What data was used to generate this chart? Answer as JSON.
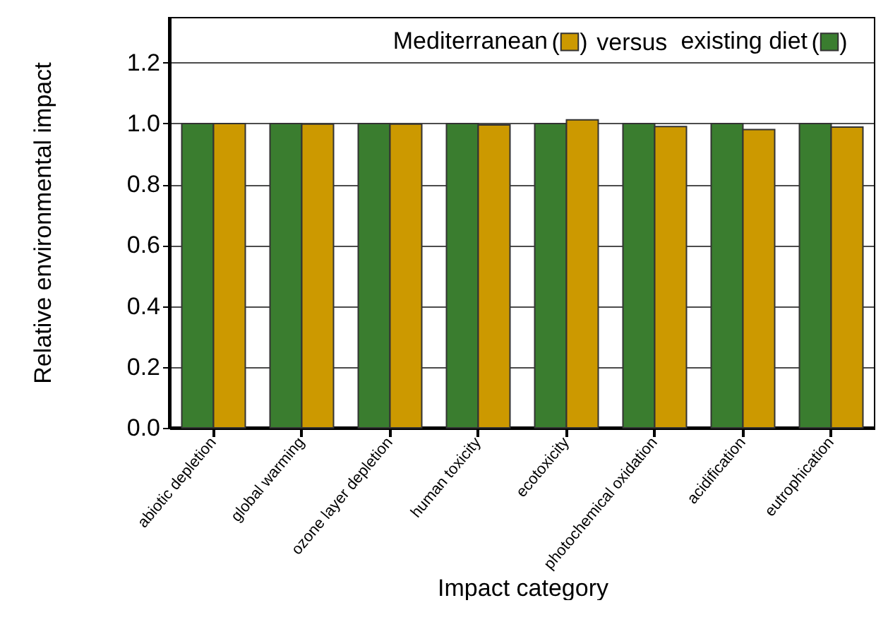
{
  "chart_data": {
    "type": "bar",
    "xlabel": "Impact category",
    "ylabel": "Relative environmental impact",
    "categories": [
      "abiotic depletion",
      "global warming",
      "ozone layer depletion",
      "human toxicity",
      "ecotoxicity",
      "photochemical oxidation",
      "acidification",
      "eutrophication"
    ],
    "series": [
      {
        "name": "existing diet",
        "color": "#3a7d2f",
        "values": [
          1,
          1,
          1,
          1,
          1,
          1,
          1,
          1
        ]
      },
      {
        "name": "Mediterranean",
        "color": "#cc9900",
        "values": [
          1.0,
          0.998,
          0.998,
          0.995,
          1.012,
          0.99,
          0.98,
          0.988
        ]
      }
    ],
    "annotations": [
      "(",
      ")",
      "versus"
    ],
    "ylim": [
      0,
      1.35
    ],
    "yticks": [
      {
        "value": 0,
        "label": "0.0"
      },
      0.2,
      0.4,
      0.6,
      0.8,
      {
        "value": 1,
        "label": "1.0"
      },
      1.2
    ],
    "grid": "y",
    "legend": "top right"
  }
}
